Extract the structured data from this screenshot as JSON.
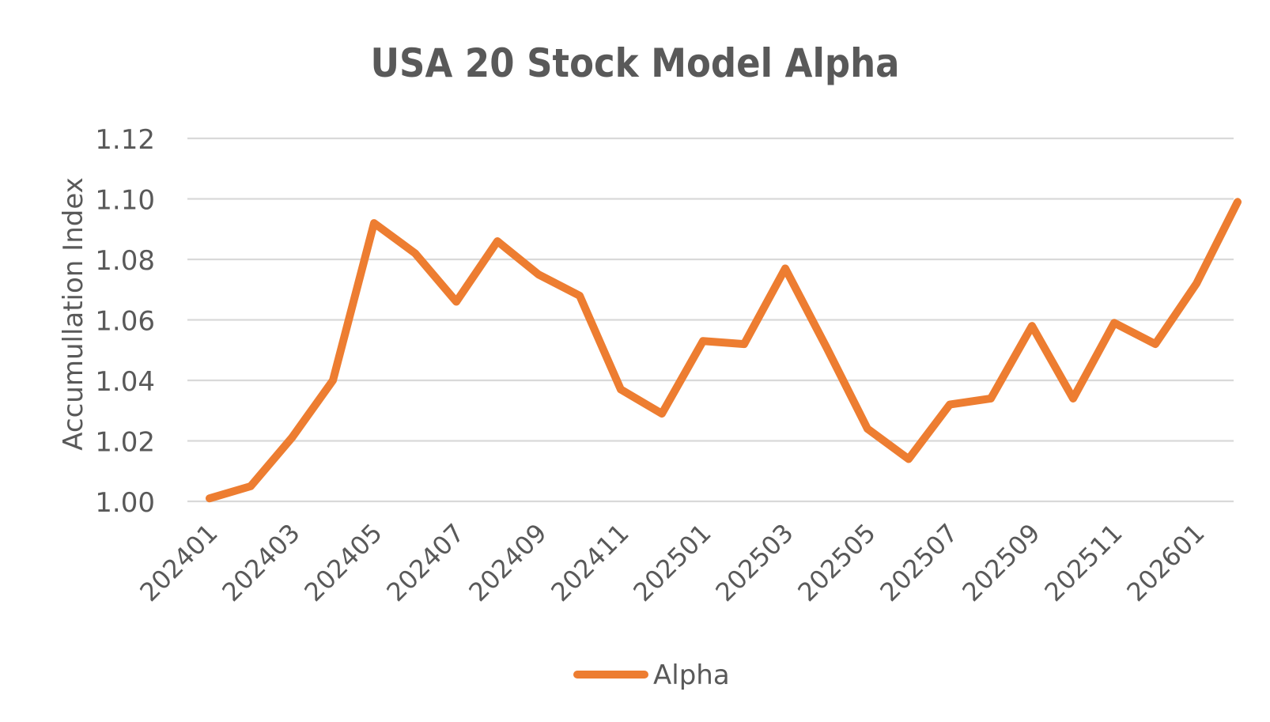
{
  "chart_data": {
    "type": "line",
    "title": "USA 20 Stock Model Alpha",
    "xlabel": "",
    "ylabel": "Accumullation Index",
    "ylim": [
      1.0,
      1.12
    ],
    "yticks": [
      "1.00",
      "1.02",
      "1.04",
      "1.06",
      "1.08",
      "1.10",
      "1.12"
    ],
    "grid": true,
    "legend_position": "bottom",
    "x": [
      "202401",
      "202402",
      "202403",
      "202404",
      "202405",
      "202406",
      "202407",
      "202408",
      "202409",
      "202410",
      "202411",
      "202412",
      "202501",
      "202502",
      "202503",
      "202504",
      "202505",
      "202506",
      "202507",
      "202508",
      "202509",
      "202510",
      "202511",
      "202512",
      "202601",
      "202602"
    ],
    "x_tick_labels": [
      "202401",
      "202403",
      "202405",
      "202407",
      "202409",
      "202411",
      "202501",
      "202503",
      "202505",
      "202507",
      "202509",
      "202511",
      "202601"
    ],
    "series": [
      {
        "name": "Alpha",
        "color": "#ED7D31",
        "values": [
          1.001,
          1.005,
          1.021,
          1.04,
          1.092,
          1.082,
          1.066,
          1.086,
          1.075,
          1.068,
          1.037,
          1.029,
          1.053,
          1.052,
          1.077,
          1.051,
          1.024,
          1.014,
          1.032,
          1.034,
          1.058,
          1.034,
          1.059,
          1.052,
          1.072,
          1.099
        ]
      }
    ]
  }
}
